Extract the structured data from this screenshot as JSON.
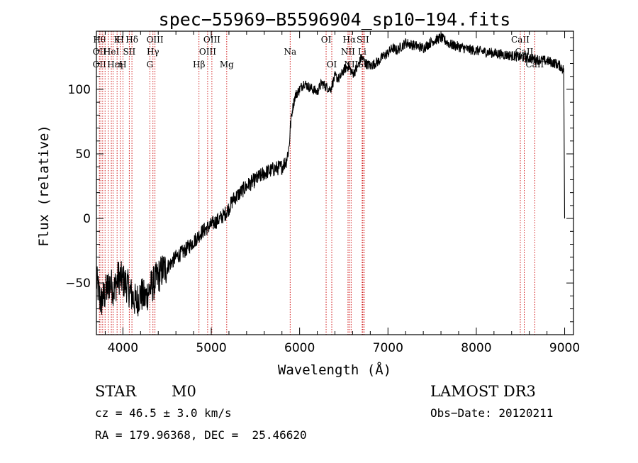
{
  "chart_data": {
    "type": "line",
    "title": "spec−55969−B5596904_sp10−194.fits",
    "xlabel": "Wavelength (Å)",
    "ylabel": "Flux (relative)",
    "xlim": [
      3700,
      9100
    ],
    "ylim": [
      -90,
      145
    ],
    "x_ticks": [
      4000,
      5000,
      6000,
      7000,
      8000,
      9000
    ],
    "x_tick_labels": [
      "4000",
      "5000",
      "6000",
      "7000",
      "8000",
      "9000"
    ],
    "y_ticks": [
      -50,
      0,
      50,
      100
    ],
    "y_tick_labels": [
      "−50",
      "0",
      "50",
      "100"
    ],
    "series": [
      {
        "name": "flux",
        "x": [
          3700,
          3750,
          3800,
          3850,
          3900,
          3950,
          4000,
          4050,
          4100,
          4150,
          4200,
          4250,
          4300,
          4350,
          4400,
          4450,
          4500,
          4600,
          4700,
          4800,
          4900,
          5000,
          5100,
          5150,
          5200,
          5250,
          5300,
          5400,
          5500,
          5600,
          5700,
          5800,
          5850,
          5880,
          5900,
          5920,
          5950,
          6000,
          6050,
          6100,
          6150,
          6200,
          6250,
          6300,
          6350,
          6400,
          6450,
          6500,
          6550,
          6600,
          6650,
          6700,
          6750,
          6800,
          6850,
          6900,
          6950,
          7000,
          7050,
          7100,
          7150,
          7200,
          7300,
          7400,
          7500,
          7600,
          7700,
          7800,
          7900,
          8000,
          8100,
          8200,
          8300,
          8400,
          8500,
          8600,
          8700,
          8800,
          8900,
          8950,
          8990,
          9000
        ],
        "y": [
          -48,
          -65,
          -58,
          -50,
          -55,
          -45,
          -48,
          -52,
          -60,
          -65,
          -58,
          -62,
          -55,
          -50,
          -45,
          -40,
          -38,
          -30,
          -25,
          -18,
          -10,
          -5,
          0,
          3,
          8,
          15,
          18,
          25,
          30,
          35,
          38,
          40,
          45,
          55,
          75,
          85,
          95,
          100,
          105,
          102,
          100,
          98,
          105,
          102,
          100,
          110,
          108,
          115,
          118,
          112,
          116,
          125,
          120,
          118,
          120,
          122,
          126,
          128,
          132,
          130,
          133,
          136,
          134,
          132,
          137,
          140,
          135,
          133,
          131,
          130,
          129,
          128,
          127,
          126,
          125,
          124,
          123,
          122,
          120,
          118,
          115,
          0
        ]
      }
    ],
    "lines": [
      {
        "x": 3734,
        "labels": [
          "Hθ",
          "OII",
          "OII"
        ]
      },
      {
        "x": 3750,
        "labels": []
      },
      {
        "x": 3771,
        "labels": []
      },
      {
        "x": 3798,
        "labels": []
      },
      {
        "x": 3835,
        "labels": []
      },
      {
        "x": 3869,
        "labels": [
          "",
          "HeI",
          ""
        ]
      },
      {
        "x": 3889,
        "labels": [
          "",
          "",
          "Hε"
        ]
      },
      {
        "x": 3934,
        "labels": [
          "K",
          "",
          ""
        ]
      },
      {
        "x": 3970,
        "labels": [
          "H",
          "",
          "η"
        ]
      },
      {
        "x": 4000,
        "labels": [
          "",
          "",
          "H"
        ]
      },
      {
        "x": 4072,
        "labels": [
          "",
          "SII",
          ""
        ]
      },
      {
        "x": 4102,
        "labels": [
          "Hδ",
          "",
          ""
        ]
      },
      {
        "x": 4305,
        "labels": [
          "",
          "",
          "G"
        ]
      },
      {
        "x": 4340,
        "labels": [
          "",
          "Hγ",
          ""
        ]
      },
      {
        "x": 4363,
        "labels": [
          "OIII",
          "",
          ""
        ]
      },
      {
        "x": 4861,
        "labels": [
          "",
          "",
          "Hβ"
        ]
      },
      {
        "x": 4959,
        "labels": [
          "",
          "OIII",
          ""
        ]
      },
      {
        "x": 5007,
        "labels": [
          "OIII",
          "",
          ""
        ]
      },
      {
        "x": 5175,
        "labels": [
          "",
          "",
          "Mg"
        ]
      },
      {
        "x": 5893,
        "labels": [
          "",
          "Na",
          ""
        ]
      },
      {
        "x": 6300,
        "labels": [
          "OI",
          "",
          ""
        ]
      },
      {
        "x": 6364,
        "labels": [
          "",
          "",
          "OI"
        ]
      },
      {
        "x": 6548,
        "labels": [
          "",
          "NII",
          ""
        ]
      },
      {
        "x": 6563,
        "labels": [
          "Hα",
          "",
          ""
        ]
      },
      {
        "x": 6583,
        "labels": [
          "",
          "",
          "NII"
        ]
      },
      {
        "x": 6708,
        "labels": [
          "",
          "Li",
          ""
        ]
      },
      {
        "x": 6716,
        "labels": [
          "SII",
          "",
          ""
        ]
      },
      {
        "x": 6731,
        "labels": [
          "",
          "",
          "SII"
        ]
      },
      {
        "x": 8498,
        "labels": [
          "CaII",
          "",
          ""
        ]
      },
      {
        "x": 8542,
        "labels": [
          "",
          "CaII",
          ""
        ]
      },
      {
        "x": 8662,
        "labels": [
          "",
          "",
          "CaII"
        ]
      }
    ]
  },
  "footer": {
    "object_type": "STAR",
    "subclass": "M0",
    "cz": "cz = 46.5 ± 3.0 km/s",
    "coords": "RA = 179.96368, DEC =  25.46620",
    "survey": "LAMOST DR3",
    "obs_date": "Obs−Date: 20120211"
  },
  "colors": {
    "line_marker": "#cc0000",
    "spectrum": "#000000",
    "axes": "#000000"
  }
}
